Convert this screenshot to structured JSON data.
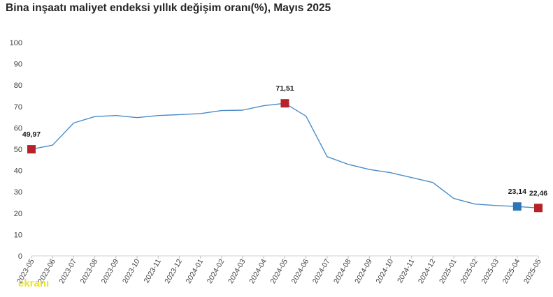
{
  "title": "Bina inşaatı maliyet endeksi yıllık değişim oranı(%), Mayıs 2025",
  "watermark": "ekranı",
  "chart_data": {
    "type": "line",
    "title": "Bina inşaatı maliyet endeksi yıllık değişim oranı(%), Mayıs 2025",
    "xlabel": "",
    "ylabel": "",
    "ylim": [
      0,
      100
    ],
    "yticks": [
      0,
      10,
      20,
      30,
      40,
      50,
      60,
      70,
      80,
      90,
      100
    ],
    "grid": false,
    "legend": "none",
    "categories": [
      "2023-05",
      "2023-06",
      "2023-07",
      "2023-08",
      "2023-09",
      "2023-10",
      "2023-11",
      "2023-12",
      "2024-01",
      "2024-02",
      "2024-03",
      "2024-04",
      "2024-05",
      "2024-06",
      "2024-07",
      "2024-08",
      "2024-09",
      "2024-10",
      "2024-11",
      "2024-12",
      "2025-01",
      "2025-02",
      "2025-03",
      "2025-04",
      "2025-05"
    ],
    "series": [
      {
        "values": [
          49.97,
          51.9,
          62.3,
          65.3,
          65.8,
          64.8,
          65.8,
          66.2,
          66.7,
          68.1,
          68.3,
          70.4,
          71.51,
          65.5,
          46.5,
          42.9,
          40.5,
          39.0,
          36.7,
          34.4,
          26.9,
          24.3,
          23.6,
          23.14,
          22.46
        ],
        "color": "#4a8cc9"
      }
    ],
    "markers": [
      {
        "index": 0,
        "label": "49,97",
        "color": "#b5222a"
      },
      {
        "index": 12,
        "label": "71,51",
        "color": "#b5222a"
      },
      {
        "index": 23,
        "label": "23,14",
        "color": "#2e75b6"
      },
      {
        "index": 24,
        "label": "22,46",
        "color": "#b5222a"
      }
    ]
  }
}
